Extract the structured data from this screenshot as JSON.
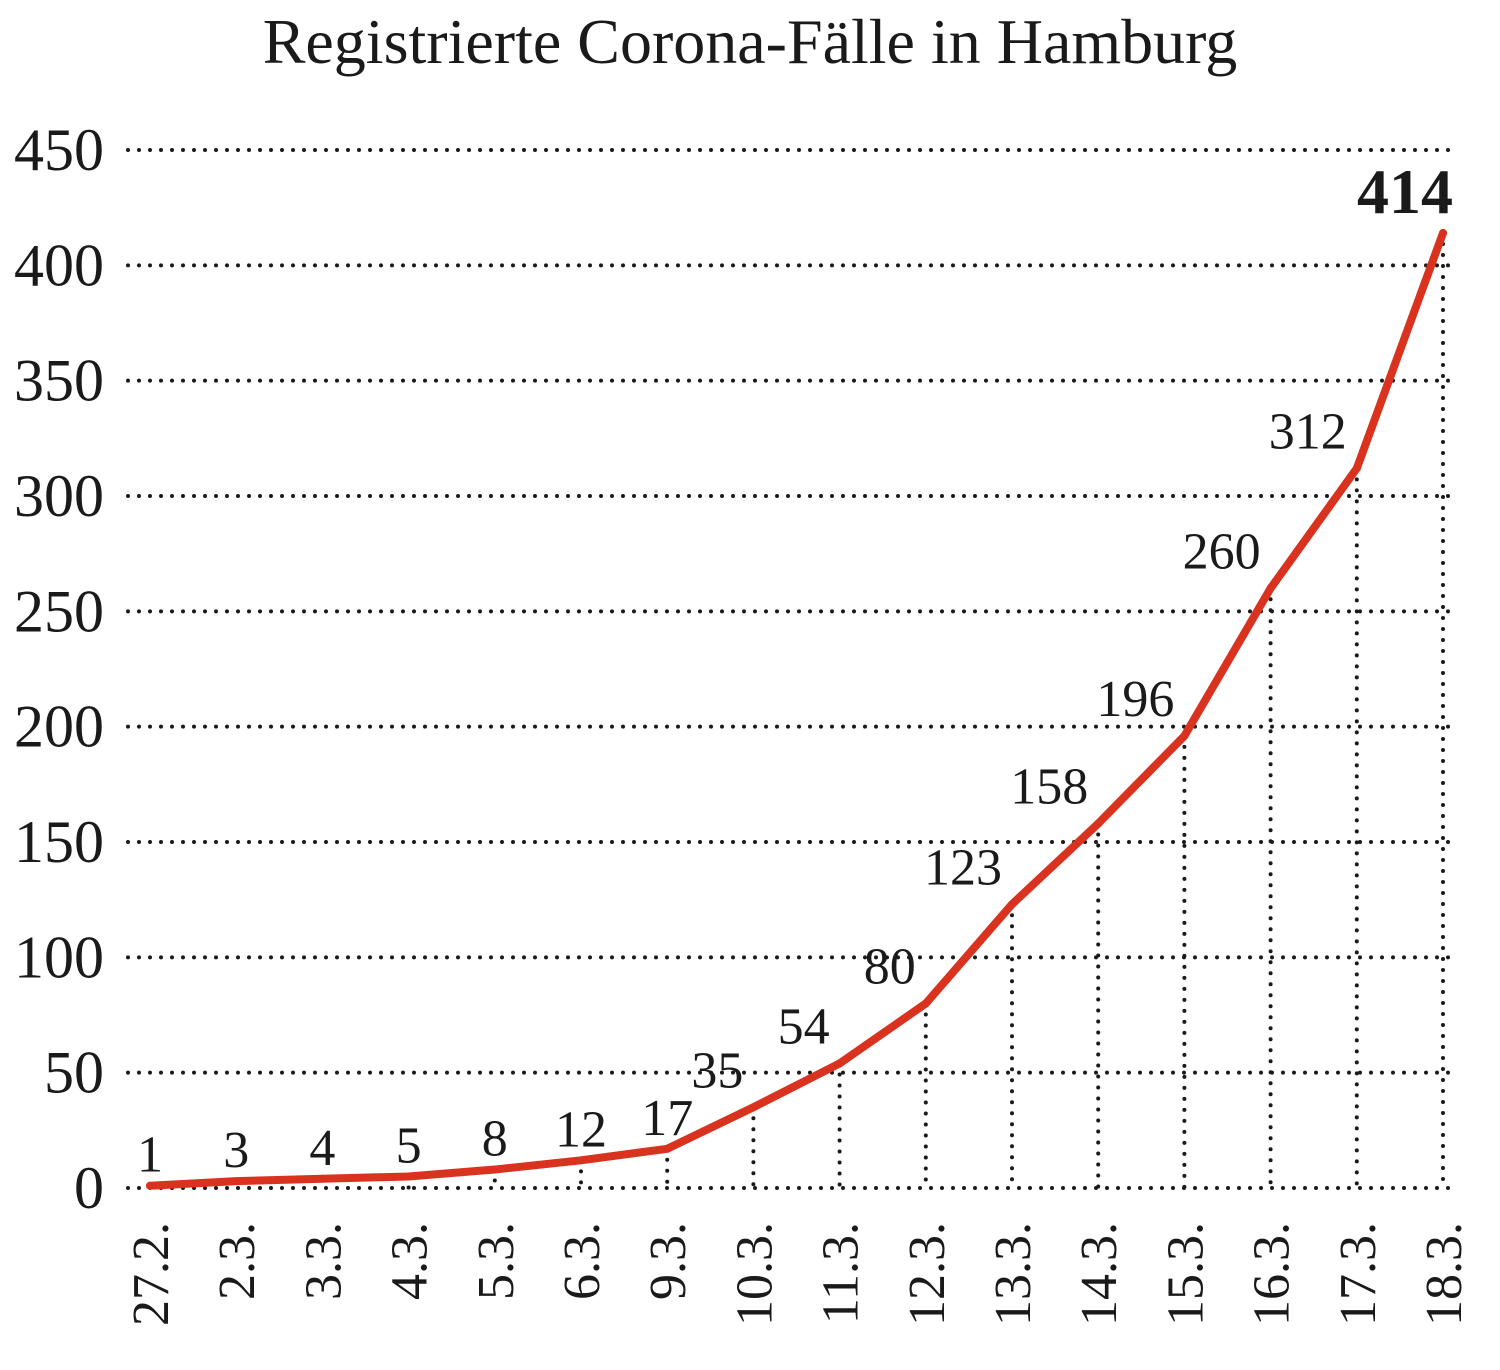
{
  "chart_data": {
    "type": "line",
    "title": "Registrierte Corona-Fälle in Hamburg",
    "xlabel": "",
    "ylabel": "",
    "categories": [
      "27.2.",
      "2.3.",
      "3.3.",
      "4.3.",
      "5.3.",
      "6.3.",
      "9.3.",
      "10.3.",
      "11.3.",
      "12.3.",
      "13.3.",
      "14.3.",
      "15.3.",
      "16.3.",
      "17.3.",
      "18.3."
    ],
    "values": [
      1,
      3,
      4,
      5,
      8,
      12,
      17,
      35,
      54,
      80,
      123,
      158,
      196,
      260,
      312,
      414
    ],
    "data_labels": [
      "1",
      "3",
      "4",
      "5",
      "8",
      "12",
      "17",
      "35",
      "54",
      "80",
      "123",
      "158",
      "196",
      "260",
      "312",
      "414"
    ],
    "yticks": [
      "0",
      "50",
      "100",
      "150",
      "200",
      "250",
      "300",
      "350",
      "400",
      "450"
    ],
    "ylim": [
      0,
      450
    ],
    "grid": true,
    "legend": "none",
    "line_color": "#d93320"
  }
}
